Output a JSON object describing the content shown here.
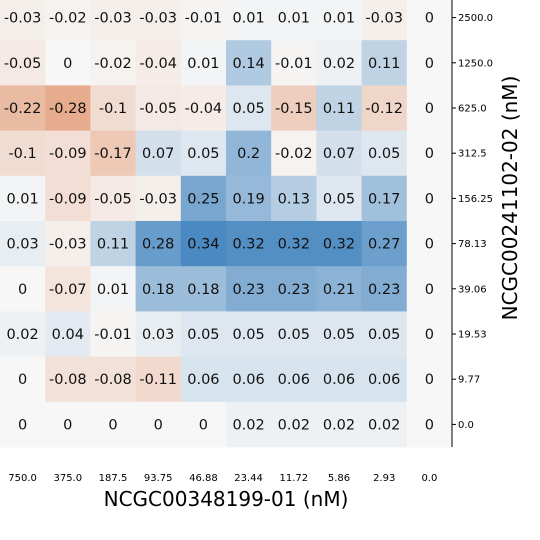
{
  "chart_data": {
    "type": "heatmap",
    "xlabel": "NCGC00348199-01 (nM)",
    "ylabel": "NCGC00241102-02 (nM)",
    "x_ticks": [
      "750.0",
      "375.0",
      "187.5",
      "93.75",
      "46.88",
      "23.44",
      "11.72",
      "5.86",
      "2.93",
      "0.0"
    ],
    "y_ticks": [
      "2500.0",
      "1250.0",
      "625.0",
      "312.5",
      "156.25",
      "78.13",
      "39.06",
      "19.53",
      "9.77",
      "0.0"
    ],
    "cell_labels": [
      [
        "-0.03",
        "-0.02",
        "-0.03",
        "-0.03",
        "-0.01",
        "0.01",
        "0.01",
        "0.01",
        "-0.03",
        "0"
      ],
      [
        "-0.05",
        "0",
        "-0.02",
        "-0.04",
        "0.01",
        "0.14",
        "-0.01",
        "0.02",
        "0.11",
        "0"
      ],
      [
        "-0.22",
        "-0.28",
        "-0.1",
        "-0.05",
        "-0.04",
        "0.05",
        "-0.15",
        "0.11",
        "-0.12",
        "0"
      ],
      [
        "-0.1",
        "-0.09",
        "-0.17",
        "0.07",
        "0.05",
        "0.2",
        "-0.02",
        "0.07",
        "0.05",
        "0"
      ],
      [
        "0.01",
        "-0.09",
        "-0.05",
        "-0.03",
        "0.25",
        "0.19",
        "0.13",
        "0.05",
        "0.17",
        "0"
      ],
      [
        "0.03",
        "-0.03",
        "0.11",
        "0.28",
        "0.34",
        "0.32",
        "0.32",
        "0.32",
        "0.27",
        "0"
      ],
      [
        "0",
        "-0.07",
        "0.01",
        "0.18",
        "0.18",
        "0.23",
        "0.23",
        "0.21",
        "0.23",
        "0"
      ],
      [
        "0.02",
        "0.04",
        "-0.01",
        "0.03",
        "0.05",
        "0.05",
        "0.05",
        "0.05",
        "0.05",
        "0"
      ],
      [
        "0",
        "-0.08",
        "-0.08",
        "-0.11",
        "0.06",
        "0.06",
        "0.06",
        "0.06",
        "0.06",
        "0"
      ],
      [
        "0",
        "0",
        "0",
        "0",
        "0",
        "0.02",
        "0.02",
        "0.02",
        "0.02",
        "0"
      ]
    ],
    "color_scale": {
      "negative": "#e08a5f",
      "neutral": "#f7f7f7",
      "positive": "#2b75b7",
      "vmin": -0.4,
      "vmax": 0.4
    },
    "legend": "none",
    "grid": false
  }
}
